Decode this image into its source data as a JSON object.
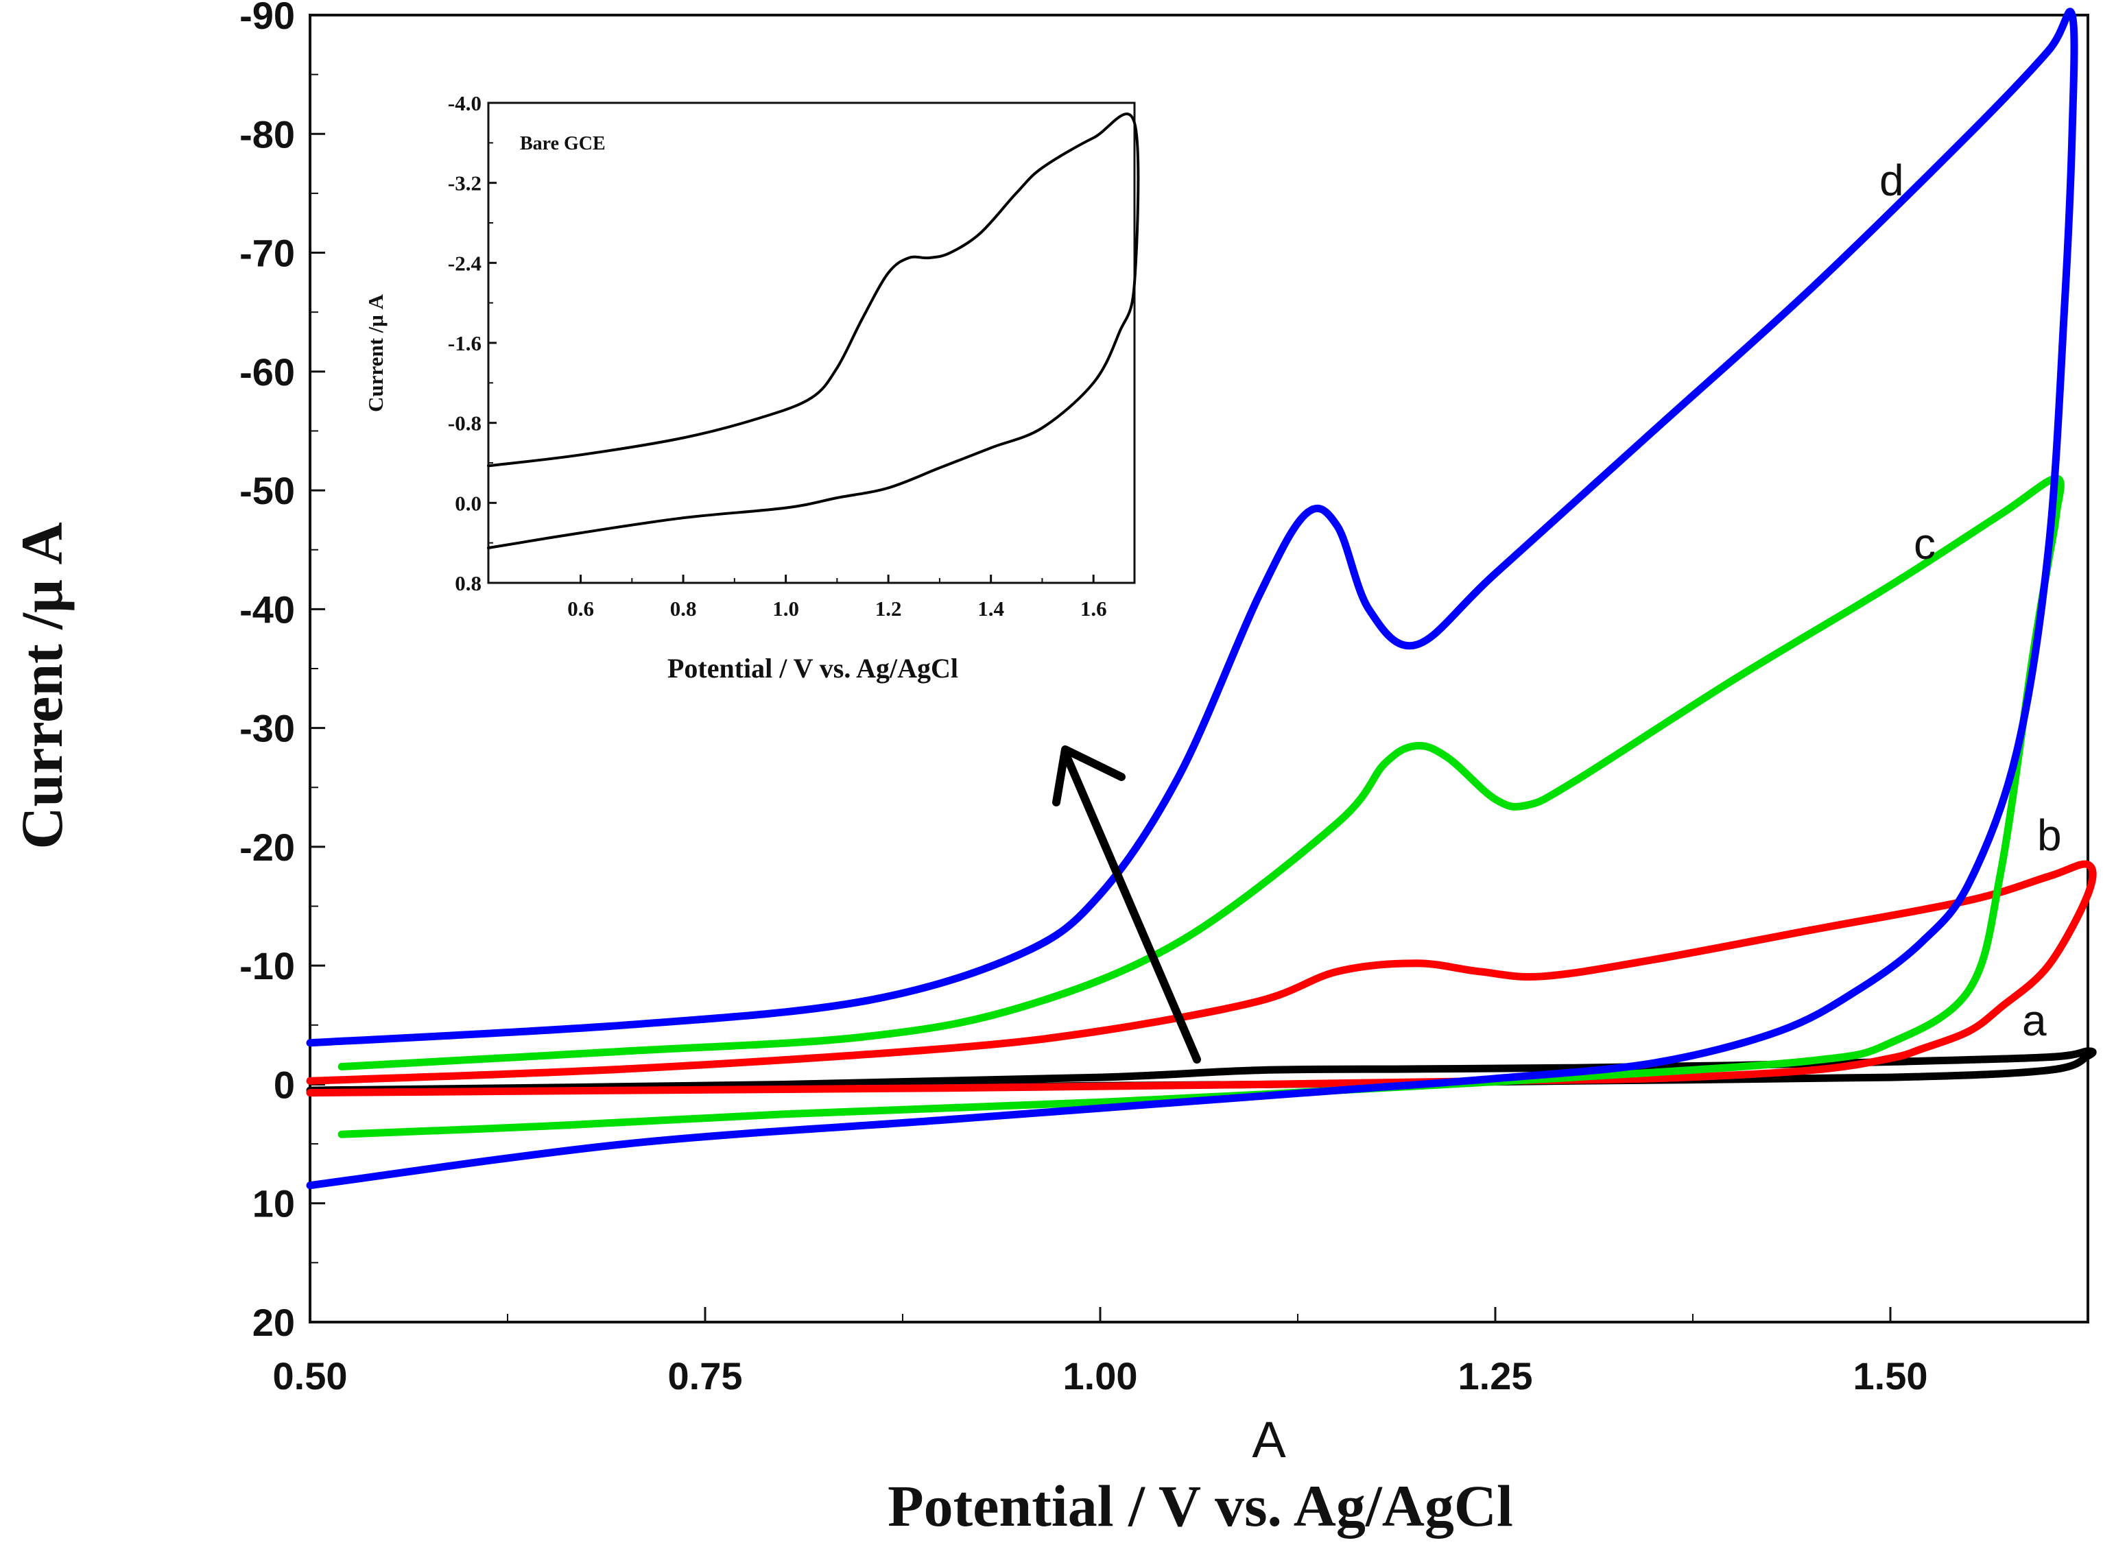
{
  "chart_data": [
    {
      "id": "main",
      "type": "line",
      "title": "",
      "panel_label": "A",
      "xlabel": "Potential / V vs. Ag/AgCl",
      "ylabel": "Current /μ A",
      "xlim": [
        0.5,
        1.625
      ],
      "ylim": [
        20,
        -90
      ],
      "x_ticks": [
        0.5,
        0.75,
        1.0,
        1.25,
        1.5
      ],
      "x_tick_labels": [
        "0.50",
        "0.75",
        "1.00",
        "1.25",
        "1.50"
      ],
      "y_ticks": [
        -90,
        -80,
        -70,
        -60,
        -50,
        -40,
        -30,
        -20,
        -10,
        0,
        10,
        20
      ],
      "y_tick_labels": [
        "-90",
        "-80",
        "-70",
        "-60",
        "-50",
        "-40",
        "-30",
        "-20",
        "-10",
        "0",
        "10",
        "20"
      ],
      "series": [
        {
          "name": "a",
          "color": "#000000",
          "x": [
            0.5,
            0.8,
            1.0,
            1.1,
            1.2,
            1.3,
            1.4,
            1.5,
            1.6,
            1.625,
            1.625,
            1.6,
            1.5,
            1.3,
            1.1,
            0.8,
            0.5
          ],
          "y": [
            0.5,
            0.0,
            -0.6,
            -1.2,
            -1.3,
            -1.4,
            -1.6,
            -1.9,
            -2.3,
            -2.8,
            -2.4,
            -1.2,
            -0.6,
            -0.3,
            0.0,
            0.3,
            0.5
          ]
        },
        {
          "name": "b",
          "color": "#ff0000",
          "x": [
            0.5,
            0.7,
            0.9,
            1.0,
            1.1,
            1.15,
            1.2,
            1.24,
            1.28,
            1.35,
            1.45,
            1.55,
            1.6,
            1.625,
            1.625,
            1.6,
            1.57,
            1.55,
            1.52,
            1.5,
            1.45,
            1.35,
            1.25,
            1.1,
            0.9,
            0.7,
            0.5
          ],
          "y": [
            -0.3,
            -1.3,
            -3.0,
            -4.5,
            -7.0,
            -9.5,
            -10.2,
            -9.5,
            -9.1,
            -10.5,
            -13.0,
            -15.5,
            -17.5,
            -18.5,
            -16.0,
            -10.0,
            -6.5,
            -4.5,
            -3.0,
            -2.2,
            -1.2,
            -0.5,
            -0.3,
            0.0,
            0.3,
            0.5,
            0.7
          ]
        },
        {
          "name": "c",
          "color": "#00e000",
          "x": [
            0.52,
            0.7,
            0.85,
            0.95,
            1.05,
            1.15,
            1.18,
            1.2,
            1.22,
            1.25,
            1.27,
            1.3,
            1.4,
            1.5,
            1.57,
            1.605,
            1.605,
            1.6,
            1.59,
            1.57,
            1.55,
            1.5,
            1.45,
            1.3,
            1.15,
            1.0,
            0.8,
            0.65,
            0.52
          ],
          "y": [
            -1.5,
            -2.8,
            -4.0,
            -6.5,
            -12.0,
            -22.0,
            -27.0,
            -28.5,
            -27.5,
            -24.0,
            -23.5,
            -25.5,
            -34.0,
            -42.0,
            -48.0,
            -51.0,
            -48.0,
            -44.0,
            -36.0,
            -18.0,
            -8.0,
            -3.5,
            -2.0,
            -0.6,
            0.5,
            1.5,
            2.5,
            3.5,
            4.2
          ]
        },
        {
          "name": "d",
          "color": "#0000ff",
          "x": [
            0.5,
            0.7,
            0.85,
            0.95,
            1.0,
            1.05,
            1.1,
            1.13,
            1.15,
            1.17,
            1.2,
            1.25,
            1.35,
            1.45,
            1.55,
            1.6,
            1.615,
            1.615,
            1.61,
            1.6,
            1.58,
            1.55,
            1.52,
            1.48,
            1.43,
            1.35,
            1.25,
            1.15,
            1.05,
            0.9,
            0.7,
            0.5
          ],
          "y": [
            -3.5,
            -5.0,
            -7.0,
            -11.0,
            -16.0,
            -26.0,
            -41.0,
            -48.0,
            -47.0,
            -40.0,
            -37.0,
            -43.0,
            -55.0,
            -67.0,
            -80.0,
            -87.0,
            -90.0,
            -80.0,
            -65.0,
            -45.0,
            -28.0,
            -17.0,
            -12.0,
            -8.0,
            -4.5,
            -1.8,
            -0.5,
            0.5,
            1.5,
            3.0,
            5.0,
            8.5
          ]
        }
      ]
    },
    {
      "id": "inset",
      "type": "line",
      "title": "Bare GCE",
      "xlabel": "Potential / V vs. Ag/AgCl",
      "ylabel": "Current /μ A",
      "xlim": [
        0.42,
        1.68
      ],
      "ylim": [
        0.8,
        -4.0
      ],
      "x_ticks": [
        0.6,
        0.8,
        1.0,
        1.2,
        1.4,
        1.6
      ],
      "x_tick_labels": [
        "0.6",
        "0.8",
        "1.0",
        "1.2",
        "1.4",
        "1.6"
      ],
      "y_ticks": [
        -4.0,
        -3.2,
        -2.4,
        -1.6,
        -0.8,
        0.0,
        0.8
      ],
      "y_tick_labels": [
        "-4.0",
        "-3.2",
        "-2.4",
        "-1.6",
        "-0.8",
        "0.0",
        "0.8"
      ],
      "series": [
        {
          "name": "Bare GCE",
          "color": "#000000",
          "x": [
            0.42,
            0.6,
            0.8,
            0.95,
            1.05,
            1.1,
            1.15,
            1.2,
            1.24,
            1.28,
            1.32,
            1.38,
            1.45,
            1.5,
            1.6,
            1.68,
            1.68,
            1.65,
            1.6,
            1.5,
            1.4,
            1.3,
            1.2,
            1.1,
            1.0,
            0.8,
            0.6,
            0.42
          ],
          "y": [
            -0.37,
            -0.48,
            -0.65,
            -0.85,
            -1.05,
            -1.35,
            -1.85,
            -2.3,
            -2.45,
            -2.45,
            -2.5,
            -2.7,
            -3.1,
            -3.35,
            -3.65,
            -3.8,
            -2.2,
            -1.7,
            -1.2,
            -0.75,
            -0.55,
            -0.35,
            -0.15,
            -0.05,
            0.05,
            0.15,
            0.3,
            0.45
          ]
        }
      ]
    }
  ]
}
